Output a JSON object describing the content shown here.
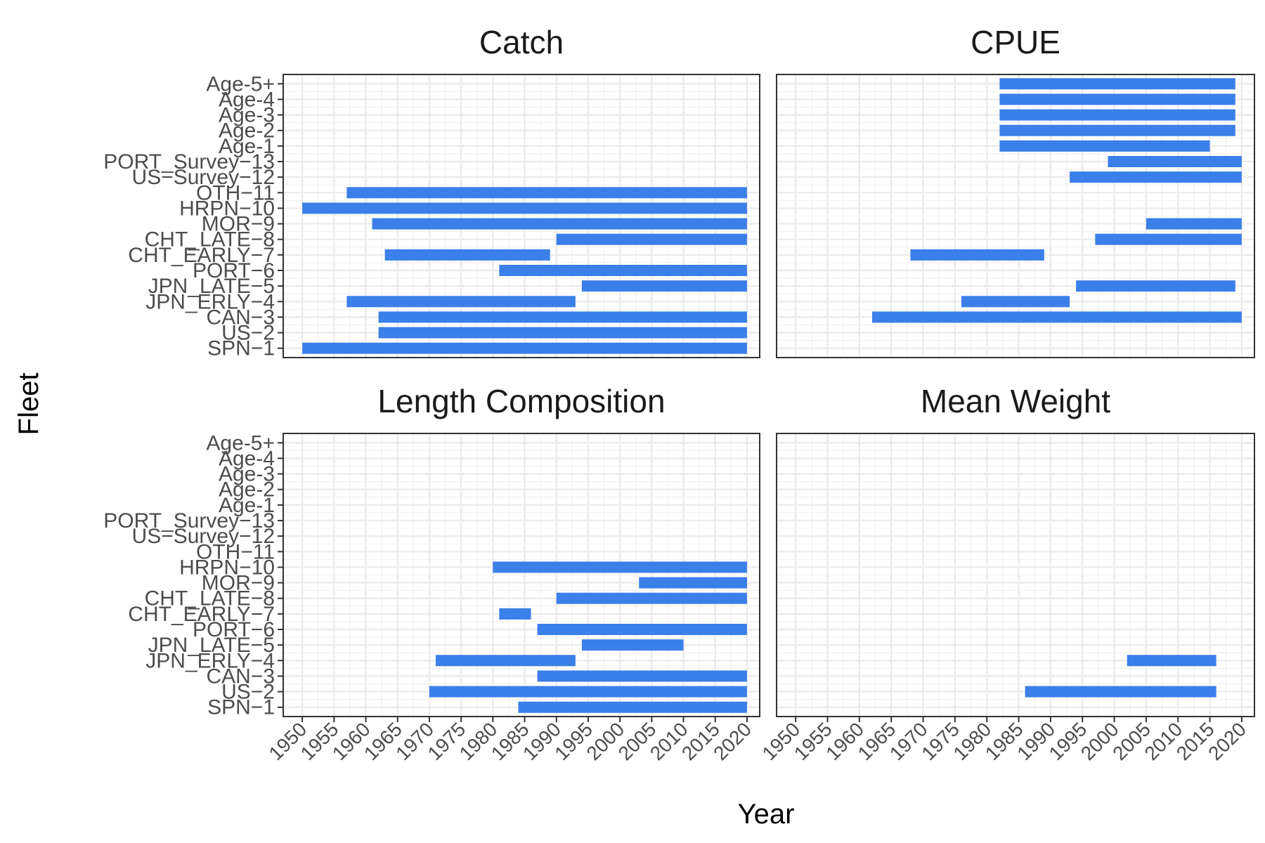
{
  "chart_data": {
    "type": "bar",
    "subtype": "horizontal-range-facets",
    "xlabel": "Year",
    "ylabel": "Fleet",
    "xlim": [
      1947,
      2022
    ],
    "x_ticks": [
      1950,
      1955,
      1960,
      1965,
      1970,
      1975,
      1980,
      1985,
      1990,
      1995,
      2000,
      2005,
      2010,
      2015,
      2020
    ],
    "fleets": [
      "SPN_1",
      "US_2",
      "CAN_3",
      "JPN_ERLY_4",
      "JPN_LATE_5",
      "PORT_6",
      "CHT_EARLY_7",
      "CHT_LATE_8",
      "MOR_9",
      "HRPN_10",
      "OTH_11",
      "US_Survey_12",
      "PORT_Survey_13",
      "Age-1",
      "Age-2",
      "Age-3",
      "Age-4",
      "Age-5+"
    ],
    "fleet_tick_labels": [
      "SPN−1",
      "US−2",
      "CAN−3",
      "JPN_ERLY−4",
      "JPN_LATE−5",
      "PORT−6",
      "CHT_EARLY−7",
      "CHT_LATE−8",
      "MOR−9",
      "HRPN−10",
      "OTH−11",
      "US−Survey−12",
      "PORT_Survey−13",
      "Age-1",
      "Age-2",
      "Age-3",
      "Age-4",
      "Age-5+"
    ],
    "bar_color": "#3b7fe8",
    "grid": true,
    "facets": [
      {
        "title": "Catch",
        "ranges": [
          {
            "fleet": "SPN_1",
            "start": 1950,
            "end": 2020
          },
          {
            "fleet": "US_2",
            "start": 1962,
            "end": 2020
          },
          {
            "fleet": "CAN_3",
            "start": 1962,
            "end": 2020
          },
          {
            "fleet": "JPN_ERLY_4",
            "start": 1957,
            "end": 1993
          },
          {
            "fleet": "JPN_LATE_5",
            "start": 1994,
            "end": 2020
          },
          {
            "fleet": "PORT_6",
            "start": 1981,
            "end": 2020
          },
          {
            "fleet": "CHT_EARLY_7",
            "start": 1963,
            "end": 1989
          },
          {
            "fleet": "CHT_LATE_8",
            "start": 1990,
            "end": 2020
          },
          {
            "fleet": "MOR_9",
            "start": 1961,
            "end": 2020
          },
          {
            "fleet": "HRPN_10",
            "start": 1950,
            "end": 2020
          },
          {
            "fleet": "OTH_11",
            "start": 1957,
            "end": 2020
          }
        ]
      },
      {
        "title": "CPUE",
        "ranges": [
          {
            "fleet": "CAN_3",
            "start": 1962,
            "end": 2020
          },
          {
            "fleet": "JPN_ERLY_4",
            "start": 1976,
            "end": 1993
          },
          {
            "fleet": "JPN_LATE_5",
            "start": 1994,
            "end": 2019
          },
          {
            "fleet": "CHT_EARLY_7",
            "start": 1968,
            "end": 1989
          },
          {
            "fleet": "CHT_LATE_8",
            "start": 1997,
            "end": 2020
          },
          {
            "fleet": "MOR_9",
            "start": 2005,
            "end": 2020
          },
          {
            "fleet": "US_Survey_12",
            "start": 1993,
            "end": 2020
          },
          {
            "fleet": "PORT_Survey_13",
            "start": 1999,
            "end": 2020
          },
          {
            "fleet": "Age-1",
            "start": 1982,
            "end": 2015
          },
          {
            "fleet": "Age-2",
            "start": 1982,
            "end": 2019
          },
          {
            "fleet": "Age-3",
            "start": 1982,
            "end": 2019
          },
          {
            "fleet": "Age-4",
            "start": 1982,
            "end": 2019
          },
          {
            "fleet": "Age-5+",
            "start": 1982,
            "end": 2019
          }
        ]
      },
      {
        "title": "Length Composition",
        "ranges": [
          {
            "fleet": "SPN_1",
            "start": 1984,
            "end": 2020
          },
          {
            "fleet": "US_2",
            "start": 1970,
            "end": 2020
          },
          {
            "fleet": "CAN_3",
            "start": 1987,
            "end": 2020
          },
          {
            "fleet": "JPN_ERLY_4",
            "start": 1971,
            "end": 1993
          },
          {
            "fleet": "JPN_LATE_5",
            "start": 1994,
            "end": 2010
          },
          {
            "fleet": "PORT_6",
            "start": 1987,
            "end": 2020
          },
          {
            "fleet": "CHT_EARLY_7",
            "start": 1981,
            "end": 1986
          },
          {
            "fleet": "CHT_LATE_8",
            "start": 1990,
            "end": 2020
          },
          {
            "fleet": "MOR_9",
            "start": 2003,
            "end": 2020
          },
          {
            "fleet": "HRPN_10",
            "start": 1980,
            "end": 2020
          }
        ]
      },
      {
        "title": "Mean Weight",
        "ranges": [
          {
            "fleet": "US_2",
            "start": 1986,
            "end": 2016
          },
          {
            "fleet": "JPN_ERLY_4",
            "start": 2002,
            "end": 2016
          }
        ]
      }
    ]
  }
}
